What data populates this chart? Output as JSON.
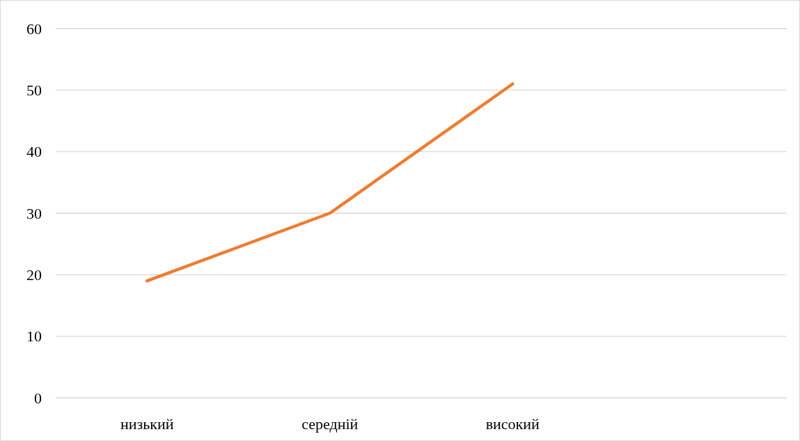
{
  "chart_data": {
    "type": "line",
    "categories": [
      "низький",
      "середній",
      "високий",
      null
    ],
    "series": [
      {
        "color": "#ed7d31",
        "values": [
          19,
          30,
          51,
          null
        ]
      }
    ],
    "ylim": [
      0,
      60
    ],
    "yticks": [
      0,
      10,
      20,
      30,
      40,
      50,
      60
    ],
    "grid": "y",
    "marker": "none",
    "line_style": "solid"
  }
}
